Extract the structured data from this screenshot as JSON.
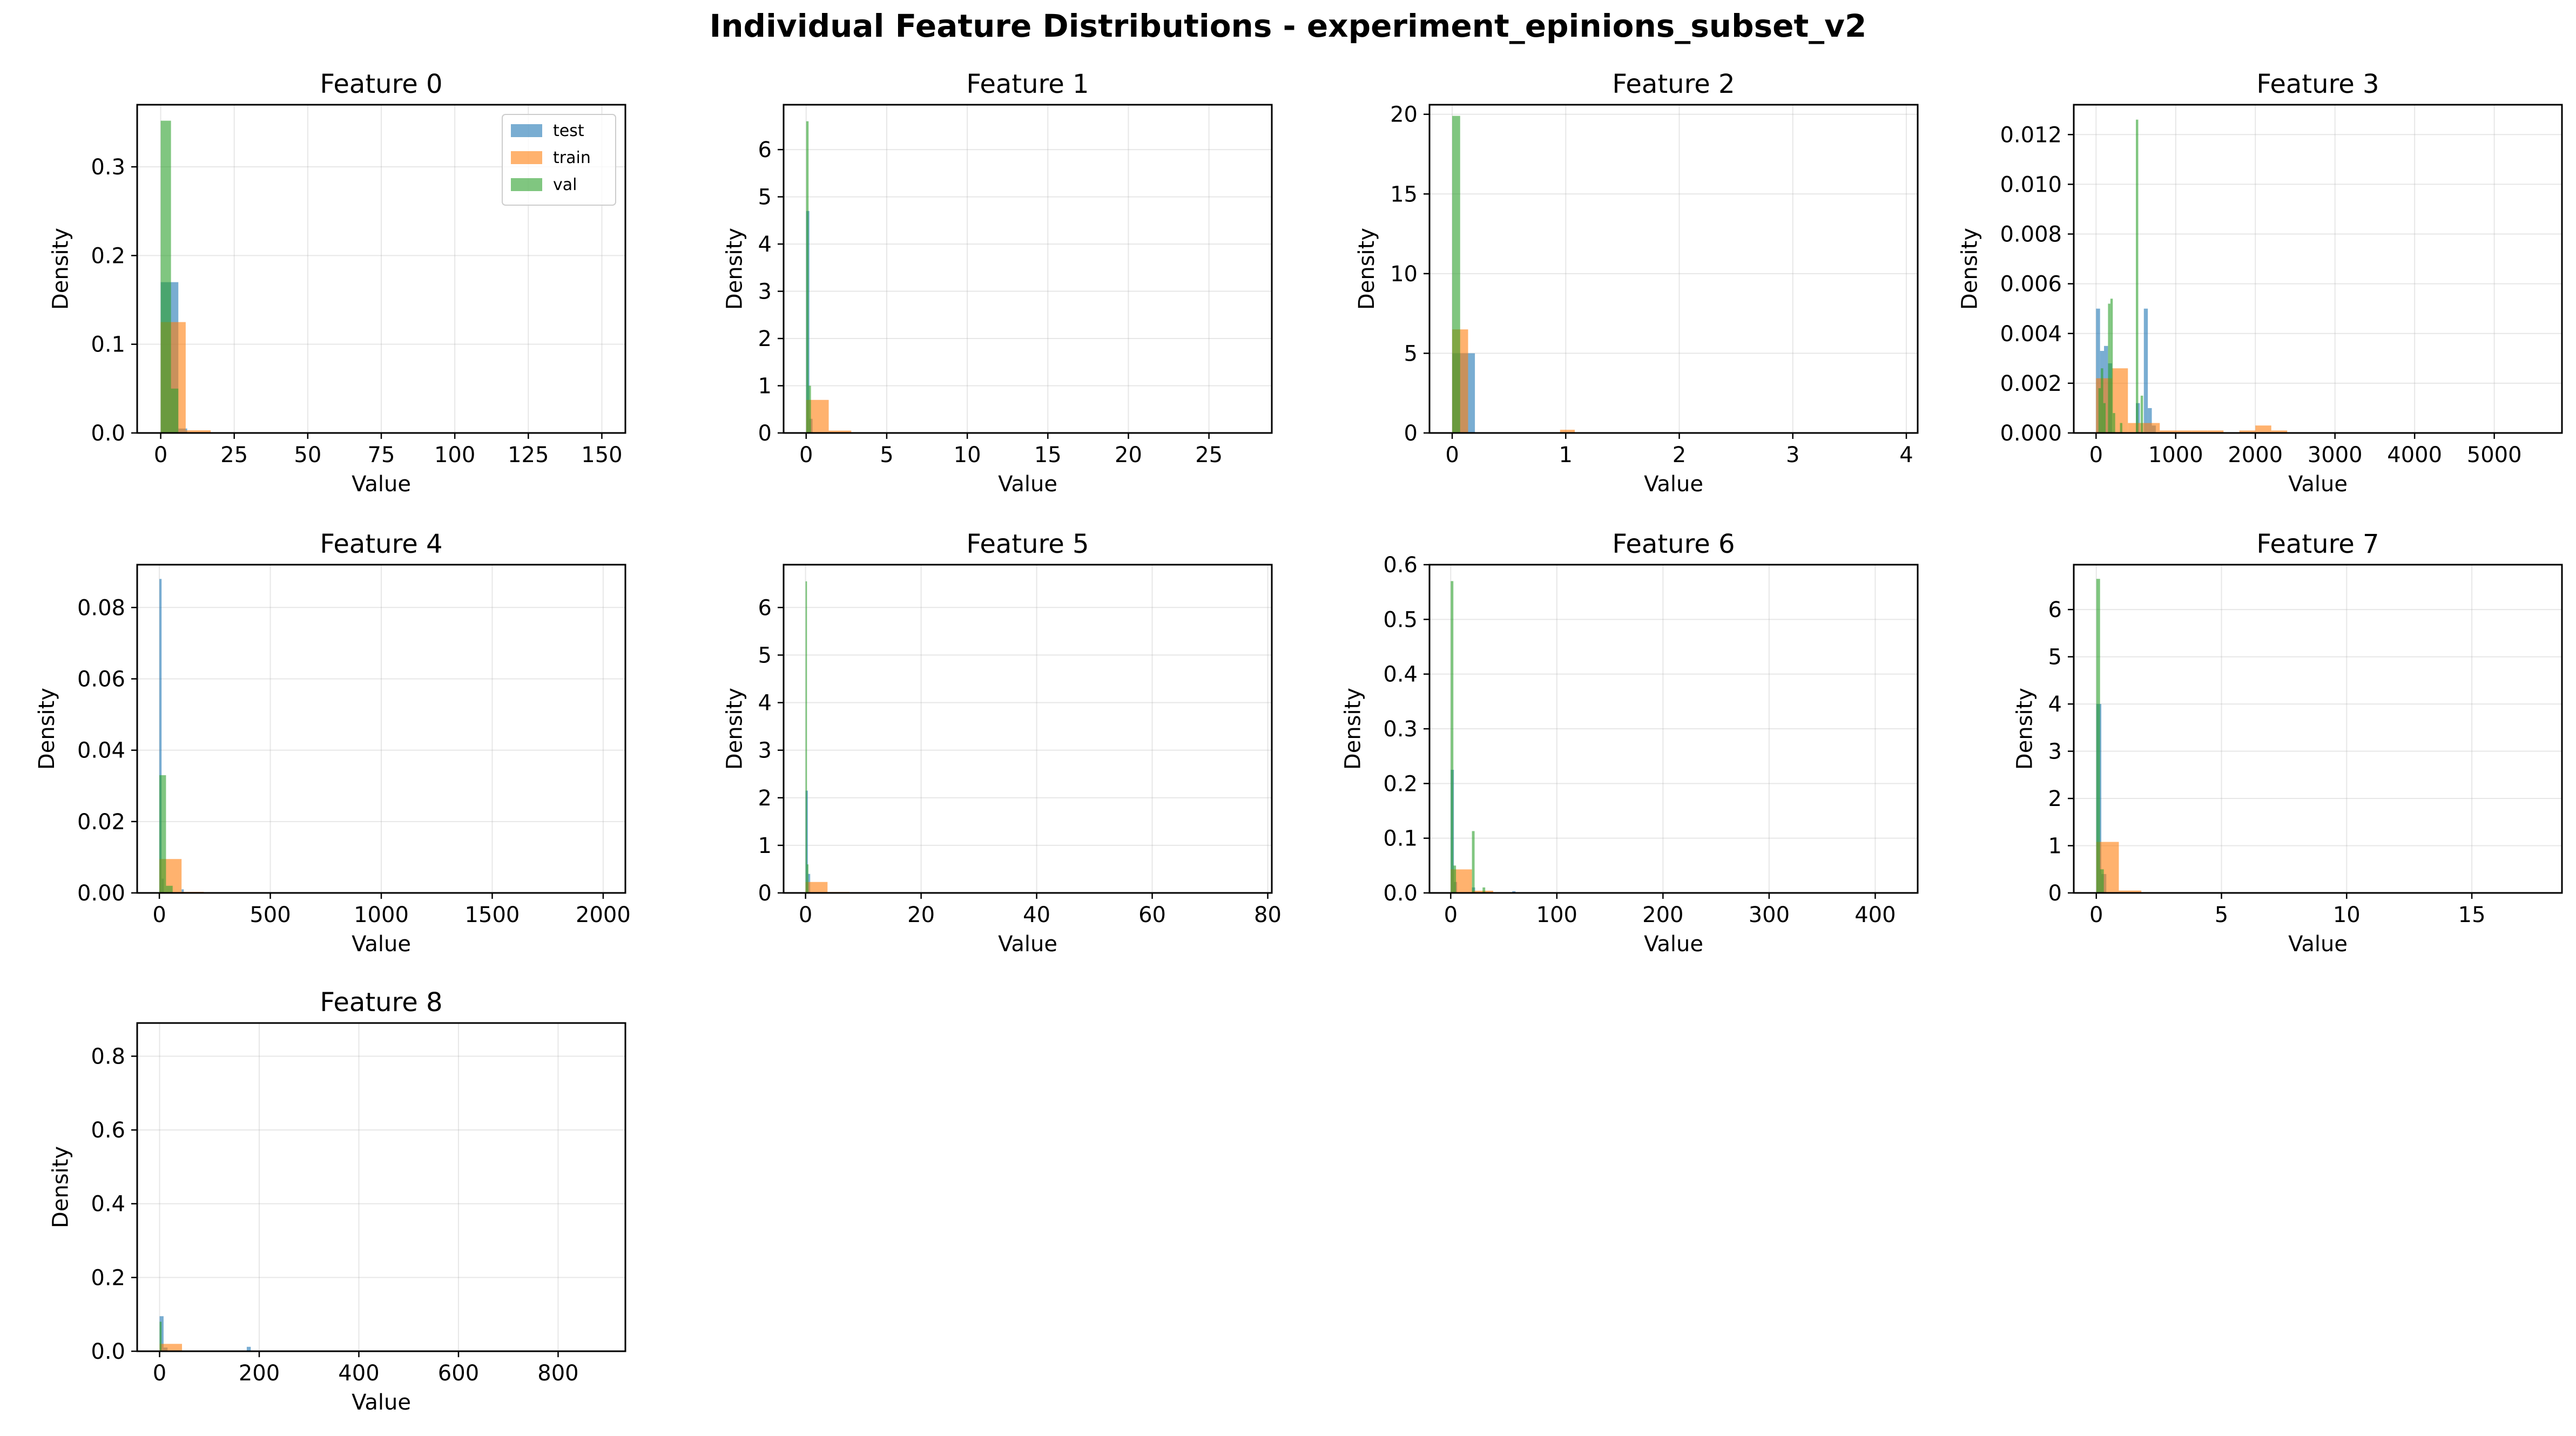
{
  "figure_title": "Individual Feature Distributions - experiment_epinions_subset_v2",
  "colors": {
    "test": "#1f77b4",
    "train": "#ff7f0e",
    "val": "#2ca02c"
  },
  "chart_data": [
    {
      "type": "bar",
      "title": "Feature 0",
      "xlabel": "Value",
      "ylabel": "Density",
      "xlim": [
        -8,
        158
      ],
      "ylim": [
        0,
        0.37
      ],
      "xticks": [
        0,
        25,
        50,
        75,
        100,
        125,
        150
      ],
      "xtick_labels": [
        "0",
        "25",
        "50",
        "75",
        "100",
        "125",
        "150"
      ],
      "yticks": [
        0,
        0.1,
        0.2,
        0.3
      ],
      "ytick_labels": [
        "0.0",
        "0.1",
        "0.2",
        "0.3"
      ],
      "legend": {
        "placement": "upper-right",
        "entries": [
          "test",
          "train",
          "val"
        ]
      },
      "series": [
        {
          "name": "test",
          "bars": [
            [
              0,
              3,
              0.17
            ],
            [
              3,
              6,
              0.17
            ],
            [
              6,
              9,
              0.005
            ]
          ]
        },
        {
          "name": "train",
          "bars": [
            [
              0,
              8.5,
              0.125
            ],
            [
              8.5,
              17,
              0.003
            ]
          ]
        },
        {
          "name": "val",
          "bars": [
            [
              0,
              3.5,
              0.352
            ],
            [
              3.5,
              6,
              0.05
            ]
          ]
        }
      ]
    },
    {
      "type": "bar",
      "title": "Feature 1",
      "xlabel": "Value",
      "ylabel": "Density",
      "xlim": [
        -1.4,
        28.9
      ],
      "ylim": [
        0,
        6.95
      ],
      "xticks": [
        0,
        5,
        10,
        15,
        20,
        25
      ],
      "xtick_labels": [
        "0",
        "5",
        "10",
        "15",
        "20",
        "25"
      ],
      "yticks": [
        0,
        1,
        2,
        3,
        4,
        5,
        6
      ],
      "ytick_labels": [
        "0",
        "1",
        "2",
        "3",
        "4",
        "5",
        "6"
      ],
      "series": [
        {
          "name": "test",
          "bars": [
            [
              0,
              0.2,
              4.7
            ],
            [
              0.2,
              0.4,
              0.3
            ]
          ]
        },
        {
          "name": "train",
          "bars": [
            [
              0,
              1.4,
              0.7
            ],
            [
              1.4,
              2.8,
              0.05
            ]
          ]
        },
        {
          "name": "val",
          "bars": [
            [
              0,
              0.15,
              6.6
            ],
            [
              0.15,
              0.3,
              1.0
            ]
          ]
        }
      ]
    },
    {
      "type": "bar",
      "title": "Feature 2",
      "xlabel": "Value",
      "ylabel": "Density",
      "xlim": [
        -0.2,
        4.1
      ],
      "ylim": [
        0,
        20.6
      ],
      "xticks": [
        0,
        1,
        2,
        3,
        4
      ],
      "xtick_labels": [
        "0",
        "1",
        "2",
        "3",
        "4"
      ],
      "yticks": [
        0,
        5,
        10,
        15,
        20
      ],
      "ytick_labels": [
        "0",
        "5",
        "10",
        "15",
        "20"
      ],
      "series": [
        {
          "name": "test",
          "bars": [
            [
              0,
              0.2,
              5.0
            ]
          ]
        },
        {
          "name": "train",
          "bars": [
            [
              0,
              0.14,
              6.5
            ],
            [
              0.95,
              1.08,
              0.2
            ]
          ]
        },
        {
          "name": "val",
          "bars": [
            [
              0,
              0.07,
              19.9
            ]
          ]
        }
      ]
    },
    {
      "type": "bar",
      "title": "Feature 3",
      "xlabel": "Value",
      "ylabel": "Density",
      "xlim": [
        -280,
        5850
      ],
      "ylim": [
        0,
        0.0132
      ],
      "xticks": [
        0,
        1000,
        2000,
        3000,
        4000,
        5000
      ],
      "xtick_labels": [
        "0",
        "1000",
        "2000",
        "3000",
        "4000",
        "5000"
      ],
      "yticks": [
        0,
        0.002,
        0.004,
        0.006,
        0.008,
        0.01,
        0.012
      ],
      "ytick_labels": [
        "0.000",
        "0.002",
        "0.004",
        "0.006",
        "0.008",
        "0.010",
        "0.012"
      ],
      "series": [
        {
          "name": "test",
          "bars": [
            [
              0,
              50,
              0.005
            ],
            [
              50,
              100,
              0.0033
            ],
            [
              100,
              150,
              0.0035
            ],
            [
              150,
              200,
              0.0028
            ],
            [
              500,
              550,
              0.0012
            ],
            [
              600,
              650,
              0.005
            ],
            [
              650,
              700,
              0.001
            ],
            [
              700,
              750,
              0.0003
            ]
          ]
        },
        {
          "name": "train",
          "bars": [
            [
              0,
              200,
              0.0022
            ],
            [
              200,
              400,
              0.0026
            ],
            [
              400,
              600,
              0.0004
            ],
            [
              600,
              800,
              0.0004
            ],
            [
              800,
              1000,
              0.0001
            ],
            [
              1000,
              1200,
              0.0001
            ],
            [
              1200,
              1400,
              0.0001
            ],
            [
              1400,
              1600,
              0.0001
            ],
            [
              1800,
              2000,
              0.0001
            ],
            [
              2000,
              2200,
              0.0003
            ],
            [
              2200,
              2400,
              0.0001
            ]
          ]
        },
        {
          "name": "val",
          "bars": [
            [
              30,
              60,
              0.0018
            ],
            [
              60,
              90,
              0.0026
            ],
            [
              90,
              120,
              0.0012
            ],
            [
              150,
              180,
              0.0052
            ],
            [
              180,
              210,
              0.0054
            ],
            [
              210,
              240,
              0.0008
            ],
            [
              300,
              330,
              0.0004
            ],
            [
              500,
              530,
              0.0126
            ],
            [
              560,
              590,
              0.0015
            ]
          ]
        }
      ]
    },
    {
      "type": "bar",
      "title": "Feature 4",
      "xlabel": "Value",
      "ylabel": "Density",
      "xlim": [
        -100,
        2100
      ],
      "ylim": [
        0,
        0.092
      ],
      "xticks": [
        0,
        500,
        1000,
        1500,
        2000
      ],
      "xtick_labels": [
        "0",
        "500",
        "1000",
        "1500",
        "2000"
      ],
      "yticks": [
        0,
        0.02,
        0.04,
        0.06,
        0.08
      ],
      "ytick_labels": [
        "0.00",
        "0.02",
        "0.04",
        "0.06",
        "0.08"
      ],
      "series": [
        {
          "name": "test",
          "bars": [
            [
              0,
              10,
              0.088
            ],
            [
              10,
              20,
              0.004
            ],
            [
              100,
              110,
              0.001
            ]
          ]
        },
        {
          "name": "train",
          "bars": [
            [
              0,
              100,
              0.0095
            ],
            [
              100,
              200,
              0.0003
            ]
          ]
        },
        {
          "name": "val",
          "bars": [
            [
              0,
              30,
              0.033
            ],
            [
              30,
              60,
              0.002
            ]
          ]
        }
      ]
    },
    {
      "type": "bar",
      "title": "Feature 5",
      "xlabel": "Value",
      "ylabel": "Density",
      "xlim": [
        -3.8,
        80.7
      ],
      "ylim": [
        0,
        6.9
      ],
      "xticks": [
        0,
        20,
        40,
        60,
        80
      ],
      "xtick_labels": [
        "0",
        "20",
        "40",
        "60",
        "80"
      ],
      "yticks": [
        0,
        1,
        2,
        3,
        4,
        5,
        6
      ],
      "ytick_labels": [
        "0",
        "1",
        "2",
        "3",
        "4",
        "5",
        "6"
      ],
      "series": [
        {
          "name": "test",
          "bars": [
            [
              0,
              0.4,
              2.15
            ],
            [
              0.4,
              0.8,
              0.4
            ]
          ]
        },
        {
          "name": "train",
          "bars": [
            [
              0,
              3.8,
              0.23
            ],
            [
              3.8,
              7.6,
              0.02
            ]
          ]
        },
        {
          "name": "val",
          "bars": [
            [
              0,
              0.25,
              6.55
            ],
            [
              0.25,
              0.5,
              0.6
            ]
          ]
        }
      ]
    },
    {
      "type": "bar",
      "title": "Feature 6",
      "xlabel": "Value",
      "ylabel": "Density",
      "xlim": [
        -20,
        440
      ],
      "ylim": [
        0,
        0.6
      ],
      "xticks": [
        0,
        100,
        200,
        300,
        400
      ],
      "xtick_labels": [
        "0",
        "100",
        "200",
        "300",
        "400"
      ],
      "yticks": [
        0,
        0.1,
        0.2,
        0.3,
        0.4,
        0.5,
        0.6
      ],
      "ytick_labels": [
        "0.0",
        "0.1",
        "0.2",
        "0.3",
        "0.4",
        "0.5",
        "0.6"
      ],
      "series": [
        {
          "name": "test",
          "bars": [
            [
              0,
              3,
              0.225
            ],
            [
              3,
              6,
              0.02
            ],
            [
              20,
              23,
              0.01
            ],
            [
              58,
              61,
              0.003
            ]
          ]
        },
        {
          "name": "train",
          "bars": [
            [
              0,
              20,
              0.043
            ],
            [
              20,
              40,
              0.004
            ]
          ]
        },
        {
          "name": "val",
          "bars": [
            [
              0,
              2.5,
              0.57
            ],
            [
              2.5,
              5,
              0.05
            ],
            [
              20,
              22.5,
              0.113
            ],
            [
              30,
              32.5,
              0.01
            ]
          ]
        }
      ]
    },
    {
      "type": "bar",
      "title": "Feature 7",
      "xlabel": "Value",
      "ylabel": "Density",
      "xlim": [
        -0.9,
        18.6
      ],
      "ylim": [
        0,
        6.95
      ],
      "xticks": [
        0,
        5,
        10,
        15
      ],
      "xtick_labels": [
        "0",
        "5",
        "10",
        "15"
      ],
      "yticks": [
        0,
        1,
        2,
        3,
        4,
        5,
        6
      ],
      "ytick_labels": [
        "0",
        "1",
        "2",
        "3",
        "4",
        "5",
        "6"
      ],
      "series": [
        {
          "name": "test",
          "bars": [
            [
              0,
              0.2,
              4.0
            ],
            [
              0.2,
              0.4,
              0.4
            ]
          ]
        },
        {
          "name": "train",
          "bars": [
            [
              0,
              0.9,
              1.08
            ],
            [
              0.9,
              1.8,
              0.05
            ]
          ]
        },
        {
          "name": "val",
          "bars": [
            [
              0,
              0.15,
              6.65
            ],
            [
              0.15,
              0.3,
              0.5
            ]
          ]
        }
      ]
    },
    {
      "type": "bar",
      "title": "Feature 8",
      "xlabel": "Value",
      "ylabel": "Density",
      "xlim": [
        -45,
        935
      ],
      "ylim": [
        0,
        0.89
      ],
      "xticks": [
        0,
        200,
        400,
        600,
        800
      ],
      "xtick_labels": [
        "0",
        "200",
        "400",
        "600",
        "800"
      ],
      "yticks": [
        0,
        0.2,
        0.4,
        0.6,
        0.8
      ],
      "ytick_labels": [
        "0.0",
        "0.2",
        "0.4",
        "0.6",
        "0.8"
      ],
      "series": [
        {
          "name": "test",
          "bars": [
            [
              0,
              8,
              0.095
            ],
            [
              8,
              16,
              0.01
            ],
            [
              175,
              183,
              0.012
            ]
          ]
        },
        {
          "name": "train",
          "bars": [
            [
              0,
              45,
              0.02
            ]
          ]
        },
        {
          "name": "val",
          "bars": [
            [
              0,
              4,
              0.08
            ]
          ]
        }
      ]
    }
  ]
}
